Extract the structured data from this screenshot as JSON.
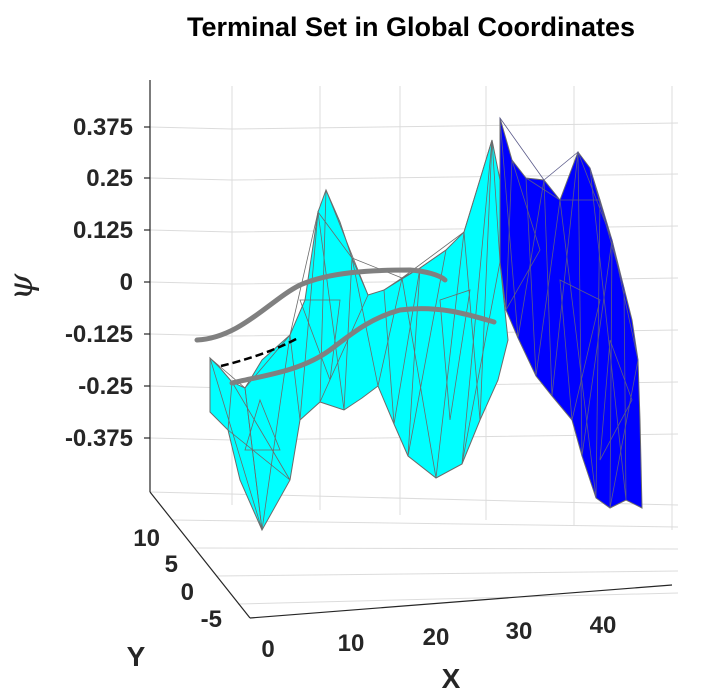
{
  "chart_data": {
    "type": "surface-3d",
    "title": "Terminal Set in Global Coordinates",
    "xlabel": "X",
    "ylabel": "Y",
    "zlabel": "ψ",
    "x_ticks": [
      "0",
      "10",
      "20",
      "30",
      "40"
    ],
    "y_ticks": [
      "10",
      "5",
      "0",
      "-5"
    ],
    "z_ticks": [
      "0.375",
      "0.25",
      "0.125",
      "0",
      "-0.125",
      "-0.25",
      "-0.375"
    ],
    "xlim": [
      0,
      50
    ],
    "ylim": [
      -8,
      12
    ],
    "zlim": [
      -0.4,
      0.4
    ],
    "grid": true,
    "colors": {
      "surface_light": "#00ffff",
      "surface_dark": "#0000ff",
      "mesh_edge": "#6b6b6b",
      "trajectory": "#808080",
      "dashed_segment": "#000000"
    },
    "series": [
      {
        "type": "surface",
        "color": "cyan",
        "x_range": [
          0,
          28
        ]
      },
      {
        "type": "surface",
        "color": "blue",
        "x_range": [
          28,
          45
        ]
      },
      {
        "type": "line",
        "color": "gray"
      },
      {
        "type": "line",
        "color": "gray"
      },
      {
        "type": "line",
        "style": "dashed",
        "color": "black"
      }
    ]
  }
}
